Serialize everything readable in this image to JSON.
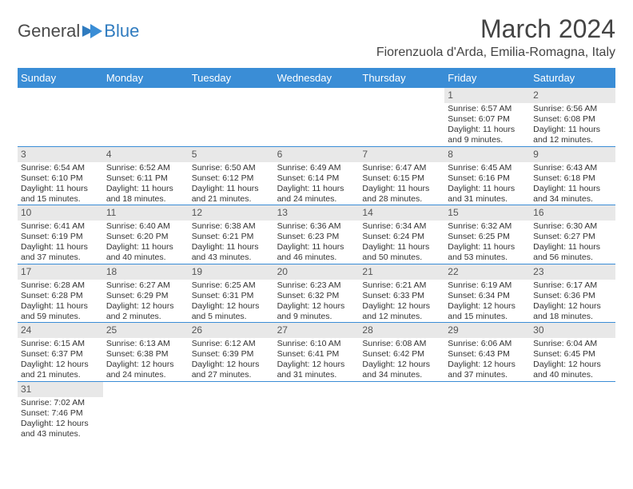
{
  "logo": {
    "part1": "General",
    "part2": "Blue"
  },
  "title": "March 2024",
  "location": "Fiorenzuola d'Arda, Emilia-Romagna, Italy",
  "day_names": [
    "Sunday",
    "Monday",
    "Tuesday",
    "Wednesday",
    "Thursday",
    "Friday",
    "Saturday"
  ],
  "colors": {
    "header_bg": "#3a8dd6",
    "header_text": "#ffffff",
    "daynum_bg": "#e8e8e8",
    "row_border": "#3a8dd6"
  },
  "weeks": [
    [
      {
        "day": "",
        "empty": true
      },
      {
        "day": "",
        "empty": true
      },
      {
        "day": "",
        "empty": true
      },
      {
        "day": "",
        "empty": true
      },
      {
        "day": "",
        "empty": true
      },
      {
        "day": "1",
        "sunrise": "Sunrise: 6:57 AM",
        "sunset": "Sunset: 6:07 PM",
        "dl1": "Daylight: 11 hours",
        "dl2": "and 9 minutes."
      },
      {
        "day": "2",
        "sunrise": "Sunrise: 6:56 AM",
        "sunset": "Sunset: 6:08 PM",
        "dl1": "Daylight: 11 hours",
        "dl2": "and 12 minutes."
      }
    ],
    [
      {
        "day": "3",
        "sunrise": "Sunrise: 6:54 AM",
        "sunset": "Sunset: 6:10 PM",
        "dl1": "Daylight: 11 hours",
        "dl2": "and 15 minutes."
      },
      {
        "day": "4",
        "sunrise": "Sunrise: 6:52 AM",
        "sunset": "Sunset: 6:11 PM",
        "dl1": "Daylight: 11 hours",
        "dl2": "and 18 minutes."
      },
      {
        "day": "5",
        "sunrise": "Sunrise: 6:50 AM",
        "sunset": "Sunset: 6:12 PM",
        "dl1": "Daylight: 11 hours",
        "dl2": "and 21 minutes."
      },
      {
        "day": "6",
        "sunrise": "Sunrise: 6:49 AM",
        "sunset": "Sunset: 6:14 PM",
        "dl1": "Daylight: 11 hours",
        "dl2": "and 24 minutes."
      },
      {
        "day": "7",
        "sunrise": "Sunrise: 6:47 AM",
        "sunset": "Sunset: 6:15 PM",
        "dl1": "Daylight: 11 hours",
        "dl2": "and 28 minutes."
      },
      {
        "day": "8",
        "sunrise": "Sunrise: 6:45 AM",
        "sunset": "Sunset: 6:16 PM",
        "dl1": "Daylight: 11 hours",
        "dl2": "and 31 minutes."
      },
      {
        "day": "9",
        "sunrise": "Sunrise: 6:43 AM",
        "sunset": "Sunset: 6:18 PM",
        "dl1": "Daylight: 11 hours",
        "dl2": "and 34 minutes."
      }
    ],
    [
      {
        "day": "10",
        "sunrise": "Sunrise: 6:41 AM",
        "sunset": "Sunset: 6:19 PM",
        "dl1": "Daylight: 11 hours",
        "dl2": "and 37 minutes."
      },
      {
        "day": "11",
        "sunrise": "Sunrise: 6:40 AM",
        "sunset": "Sunset: 6:20 PM",
        "dl1": "Daylight: 11 hours",
        "dl2": "and 40 minutes."
      },
      {
        "day": "12",
        "sunrise": "Sunrise: 6:38 AM",
        "sunset": "Sunset: 6:21 PM",
        "dl1": "Daylight: 11 hours",
        "dl2": "and 43 minutes."
      },
      {
        "day": "13",
        "sunrise": "Sunrise: 6:36 AM",
        "sunset": "Sunset: 6:23 PM",
        "dl1": "Daylight: 11 hours",
        "dl2": "and 46 minutes."
      },
      {
        "day": "14",
        "sunrise": "Sunrise: 6:34 AM",
        "sunset": "Sunset: 6:24 PM",
        "dl1": "Daylight: 11 hours",
        "dl2": "and 50 minutes."
      },
      {
        "day": "15",
        "sunrise": "Sunrise: 6:32 AM",
        "sunset": "Sunset: 6:25 PM",
        "dl1": "Daylight: 11 hours",
        "dl2": "and 53 minutes."
      },
      {
        "day": "16",
        "sunrise": "Sunrise: 6:30 AM",
        "sunset": "Sunset: 6:27 PM",
        "dl1": "Daylight: 11 hours",
        "dl2": "and 56 minutes."
      }
    ],
    [
      {
        "day": "17",
        "sunrise": "Sunrise: 6:28 AM",
        "sunset": "Sunset: 6:28 PM",
        "dl1": "Daylight: 11 hours",
        "dl2": "and 59 minutes."
      },
      {
        "day": "18",
        "sunrise": "Sunrise: 6:27 AM",
        "sunset": "Sunset: 6:29 PM",
        "dl1": "Daylight: 12 hours",
        "dl2": "and 2 minutes."
      },
      {
        "day": "19",
        "sunrise": "Sunrise: 6:25 AM",
        "sunset": "Sunset: 6:31 PM",
        "dl1": "Daylight: 12 hours",
        "dl2": "and 5 minutes."
      },
      {
        "day": "20",
        "sunrise": "Sunrise: 6:23 AM",
        "sunset": "Sunset: 6:32 PM",
        "dl1": "Daylight: 12 hours",
        "dl2": "and 9 minutes."
      },
      {
        "day": "21",
        "sunrise": "Sunrise: 6:21 AM",
        "sunset": "Sunset: 6:33 PM",
        "dl1": "Daylight: 12 hours",
        "dl2": "and 12 minutes."
      },
      {
        "day": "22",
        "sunrise": "Sunrise: 6:19 AM",
        "sunset": "Sunset: 6:34 PM",
        "dl1": "Daylight: 12 hours",
        "dl2": "and 15 minutes."
      },
      {
        "day": "23",
        "sunrise": "Sunrise: 6:17 AM",
        "sunset": "Sunset: 6:36 PM",
        "dl1": "Daylight: 12 hours",
        "dl2": "and 18 minutes."
      }
    ],
    [
      {
        "day": "24",
        "sunrise": "Sunrise: 6:15 AM",
        "sunset": "Sunset: 6:37 PM",
        "dl1": "Daylight: 12 hours",
        "dl2": "and 21 minutes."
      },
      {
        "day": "25",
        "sunrise": "Sunrise: 6:13 AM",
        "sunset": "Sunset: 6:38 PM",
        "dl1": "Daylight: 12 hours",
        "dl2": "and 24 minutes."
      },
      {
        "day": "26",
        "sunrise": "Sunrise: 6:12 AM",
        "sunset": "Sunset: 6:39 PM",
        "dl1": "Daylight: 12 hours",
        "dl2": "and 27 minutes."
      },
      {
        "day": "27",
        "sunrise": "Sunrise: 6:10 AM",
        "sunset": "Sunset: 6:41 PM",
        "dl1": "Daylight: 12 hours",
        "dl2": "and 31 minutes."
      },
      {
        "day": "28",
        "sunrise": "Sunrise: 6:08 AM",
        "sunset": "Sunset: 6:42 PM",
        "dl1": "Daylight: 12 hours",
        "dl2": "and 34 minutes."
      },
      {
        "day": "29",
        "sunrise": "Sunrise: 6:06 AM",
        "sunset": "Sunset: 6:43 PM",
        "dl1": "Daylight: 12 hours",
        "dl2": "and 37 minutes."
      },
      {
        "day": "30",
        "sunrise": "Sunrise: 6:04 AM",
        "sunset": "Sunset: 6:45 PM",
        "dl1": "Daylight: 12 hours",
        "dl2": "and 40 minutes."
      }
    ],
    [
      {
        "day": "31",
        "sunrise": "Sunrise: 7:02 AM",
        "sunset": "Sunset: 7:46 PM",
        "dl1": "Daylight: 12 hours",
        "dl2": "and 43 minutes."
      },
      {
        "day": "",
        "empty": true
      },
      {
        "day": "",
        "empty": true
      },
      {
        "day": "",
        "empty": true
      },
      {
        "day": "",
        "empty": true
      },
      {
        "day": "",
        "empty": true
      },
      {
        "day": "",
        "empty": true
      }
    ]
  ]
}
